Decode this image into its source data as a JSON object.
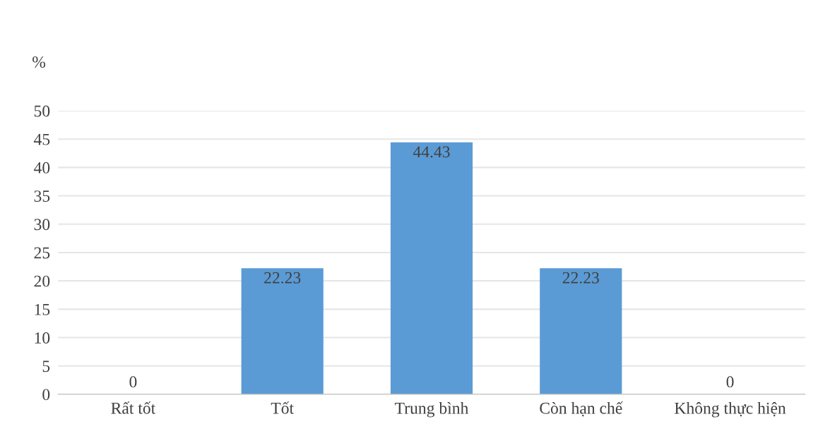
{
  "chart_data": {
    "type": "bar",
    "ylabel": "%",
    "categories": [
      "Rất tốt",
      "Tốt",
      "Trung bình",
      "Còn hạn chế",
      "Không thực hiện"
    ],
    "values": [
      0,
      22.23,
      44.43,
      22.23,
      0
    ],
    "color": "#5b9bd5",
    "ylim": [
      0,
      50
    ],
    "yticks": [
      0,
      5,
      10,
      15,
      20,
      25,
      30,
      35,
      40,
      45,
      50
    ],
    "grid": "y",
    "data_labels": true,
    "legend": false
  }
}
